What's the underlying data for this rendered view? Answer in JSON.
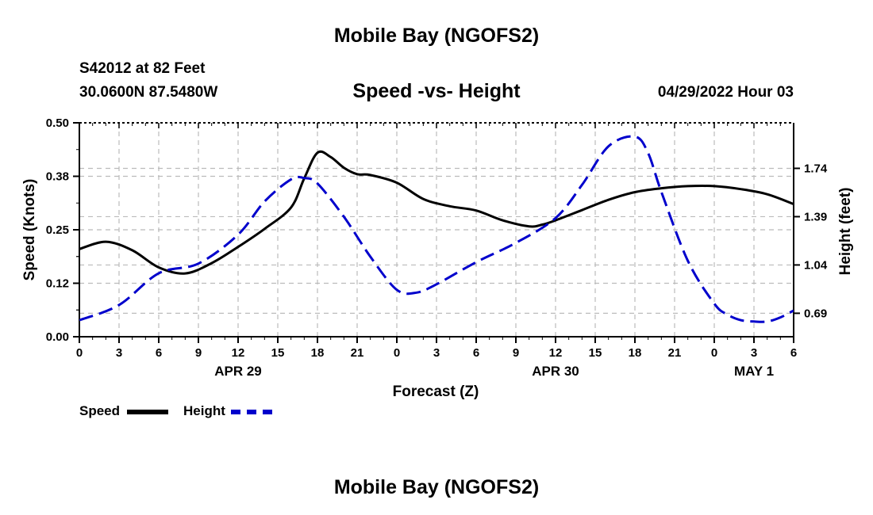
{
  "header": {
    "title": "Mobile Bay (NGOFS2)",
    "station": "S42012 at 82 Feet",
    "coords": "30.0600N  87.5480W",
    "subtitle": "Speed -vs- Height",
    "datetime": "04/29/2022 Hour 03"
  },
  "footer": {
    "title": "Mobile Bay (NGOFS2)"
  },
  "legend": {
    "speed_label": "Speed",
    "height_label": "Height"
  },
  "chart_data": {
    "type": "line",
    "title": "Speed -vs- Height",
    "xlabel": "Forecast (Z)",
    "ylabel": "Speed (Knots)",
    "y2label": "Height (feet)",
    "x_ticks": [
      "0",
      "3",
      "6",
      "9",
      "12",
      "15",
      "18",
      "21",
      "0",
      "3",
      "6",
      "9",
      "12",
      "15",
      "18",
      "21",
      "0",
      "3",
      "6"
    ],
    "day_labels": [
      {
        "label": "APR 29",
        "hour": 12
      },
      {
        "label": "APR 30",
        "hour": 36
      },
      {
        "label": "MAY 1",
        "hour": 51
      }
    ],
    "xlim": [
      0,
      54
    ],
    "ylim": [
      0.0,
      0.5
    ],
    "y_ticks": [
      "0.00",
      "0.12",
      "0.25",
      "0.38",
      "0.50"
    ],
    "y_tick_values": [
      0.0,
      0.125,
      0.25,
      0.375,
      0.5
    ],
    "y2lim": [
      0.52,
      2.07
    ],
    "y2_ticks": [
      "0.69",
      "1.04",
      "1.39",
      "1.74"
    ],
    "y2_tick_values": [
      0.69,
      1.04,
      1.39,
      1.74
    ],
    "grid": true,
    "legend_position": "bottom-left",
    "series": [
      {
        "name": "Speed",
        "axis": "left",
        "color": "#000000",
        "style": "solid",
        "x": [
          0,
          2,
          4,
          6,
          8,
          10,
          12,
          14,
          16,
          17,
          18,
          19,
          20,
          21,
          22,
          24,
          26,
          28,
          30,
          32,
          34,
          35,
          36,
          38,
          40,
          42,
          44,
          46,
          48,
          50,
          52,
          54
        ],
        "y": [
          0.205,
          0.222,
          0.202,
          0.162,
          0.148,
          0.172,
          0.21,
          0.252,
          0.302,
          0.37,
          0.43,
          0.42,
          0.395,
          0.38,
          0.378,
          0.36,
          0.322,
          0.305,
          0.295,
          0.272,
          0.258,
          0.262,
          0.272,
          0.296,
          0.32,
          0.338,
          0.347,
          0.352,
          0.352,
          0.345,
          0.333,
          0.31
        ]
      },
      {
        "name": "Height",
        "axis": "right",
        "color": "#0000cc",
        "style": "dashed",
        "x": [
          0,
          3,
          6,
          9,
          12,
          14,
          16,
          17,
          18,
          20,
          22,
          24,
          25.5,
          27,
          30,
          33,
          36,
          38,
          40,
          42,
          43,
          44,
          46,
          48,
          49,
          50,
          51,
          52,
          53,
          54
        ],
        "y": [
          0.64,
          0.75,
          0.98,
          1.05,
          1.26,
          1.5,
          1.66,
          1.67,
          1.63,
          1.39,
          1.1,
          0.86,
          0.84,
          0.9,
          1.06,
          1.2,
          1.38,
          1.62,
          1.9,
          1.97,
          1.85,
          1.57,
          1.07,
          0.76,
          0.68,
          0.64,
          0.63,
          0.63,
          0.66,
          0.71
        ]
      }
    ]
  }
}
